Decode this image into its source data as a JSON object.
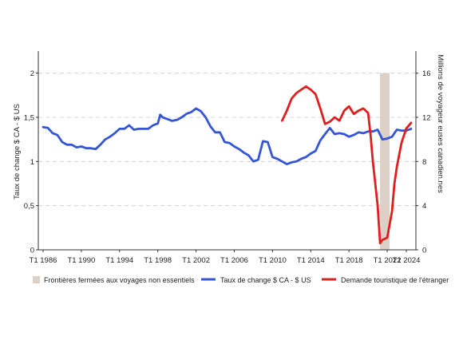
{
  "colors": {
    "exchange_rate": "#3355d6",
    "tourism": "#e01e1e",
    "closure": "#ddd1c7",
    "grid": "#cccccc",
    "axis": "#333333"
  },
  "chart_data": {
    "type": "line",
    "title": "",
    "grid": "horizontal dashed",
    "legend_position": "bottom",
    "x_axis": {
      "ticks": [
        "T1 1986",
        "T1 1990",
        "T1 1994",
        "T1 1998",
        "T1 2002",
        "T1 2006",
        "T1 2010",
        "T1 2014",
        "T1 2018",
        "T1 2022",
        "T1 2024"
      ],
      "range": [
        1985.5,
        2025.0
      ]
    },
    "y_left": {
      "label": "Taux de change $ CA - $ US",
      "ticks": [
        "0",
        "0,5",
        "1",
        "1,5",
        "2"
      ],
      "range": [
        0,
        2.25
      ]
    },
    "y_right": {
      "label": "Millions de voyageur euses canadien.nes",
      "ticks": [
        "0",
        "4",
        "8",
        "12",
        "16"
      ],
      "range": [
        0,
        18
      ]
    },
    "shaded_region": {
      "label": "Frontières fermées aux voyages non essentiels",
      "x_range": [
        2021.25,
        2022.25
      ]
    },
    "series": [
      {
        "name": "Taux de change $ CA - $ US",
        "axis": "left",
        "x": [
          1986.0,
          1986.5,
          1987.0,
          1987.5,
          1988.0,
          1988.5,
          1989.0,
          1989.5,
          1990.0,
          1990.5,
          1991.0,
          1991.5,
          1992.0,
          1992.5,
          1993.0,
          1993.5,
          1994.0,
          1994.5,
          1995.0,
          1995.5,
          1996.0,
          1996.5,
          1997.0,
          1997.5,
          1998.0,
          1998.25,
          1998.5,
          1999.0,
          1999.5,
          2000.0,
          2000.5,
          2001.0,
          2001.5,
          2002.0,
          2002.5,
          2003.0,
          2003.5,
          2004.0,
          2004.5,
          2005.0,
          2005.5,
          2006.0,
          2006.5,
          2007.0,
          2007.5,
          2008.0,
          2008.5,
          2009.0,
          2009.5,
          2010.0,
          2010.5,
          2011.0,
          2011.5,
          2012.0,
          2012.5,
          2013.0,
          2013.5,
          2014.0,
          2014.5,
          2015.0,
          2015.5,
          2016.0,
          2016.5,
          2017.0,
          2017.5,
          2018.0,
          2018.5,
          2019.0,
          2019.5,
          2020.0,
          2020.5,
          2021.0,
          2021.5,
          2022.0,
          2022.5,
          2023.0,
          2023.5,
          2024.0,
          2024.5
        ],
        "y": [
          1.39,
          1.38,
          1.32,
          1.3,
          1.22,
          1.19,
          1.19,
          1.16,
          1.17,
          1.15,
          1.15,
          1.14,
          1.19,
          1.25,
          1.28,
          1.32,
          1.37,
          1.37,
          1.41,
          1.36,
          1.37,
          1.37,
          1.37,
          1.41,
          1.43,
          1.53,
          1.5,
          1.48,
          1.46,
          1.47,
          1.5,
          1.54,
          1.56,
          1.6,
          1.57,
          1.5,
          1.4,
          1.33,
          1.33,
          1.22,
          1.21,
          1.17,
          1.14,
          1.1,
          1.07,
          1.0,
          1.02,
          1.23,
          1.22,
          1.05,
          1.03,
          1.0,
          0.97,
          0.99,
          1.0,
          1.03,
          1.05,
          1.09,
          1.12,
          1.24,
          1.31,
          1.38,
          1.31,
          1.32,
          1.31,
          1.28,
          1.3,
          1.33,
          1.32,
          1.34,
          1.34,
          1.36,
          1.25,
          1.26,
          1.28,
          1.36,
          1.35,
          1.35,
          1.37
        ]
      },
      {
        "name": "Demande touristique de l'étranger",
        "axis": "right",
        "x": [
          2011.0,
          2011.5,
          2012.0,
          2012.5,
          2013.0,
          2013.5,
          2014.0,
          2014.5,
          2015.0,
          2015.5,
          2016.0,
          2016.5,
          2017.0,
          2017.5,
          2018.0,
          2018.5,
          2019.0,
          2019.5,
          2020.0,
          2020.25,
          2020.5,
          2021.0,
          2021.25,
          2021.5,
          2022.0,
          2022.5,
          2022.75,
          2023.0,
          2023.5,
          2024.0,
          2024.5
        ],
        "y": [
          11.7,
          12.6,
          13.7,
          14.2,
          14.5,
          14.8,
          14.5,
          14.1,
          12.8,
          11.4,
          11.6,
          12.0,
          11.7,
          12.6,
          13.0,
          12.3,
          12.6,
          12.8,
          12.4,
          10.5,
          8.0,
          4.0,
          0.6,
          0.9,
          1.1,
          3.5,
          6.0,
          7.5,
          9.7,
          11.0,
          11.5
        ]
      }
    ]
  }
}
